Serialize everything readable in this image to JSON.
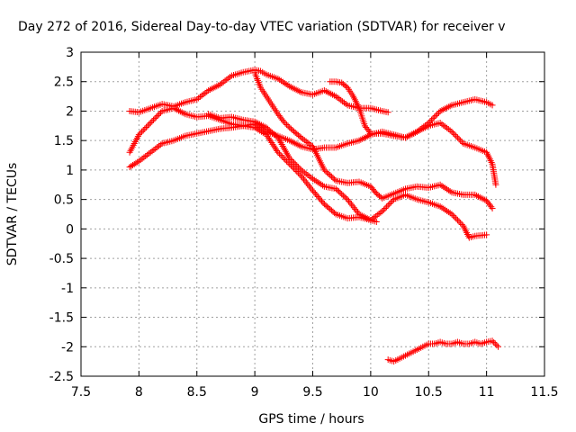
{
  "chart_data": {
    "type": "scatter",
    "title": "Day 272 of 2016, Sidereal Day-to-day VTEC variation (SDTVAR) for receiver v",
    "xlabel": "GPS time / hours",
    "ylabel": "SDTVAR / TECUs",
    "xlim": [
      7.5,
      11.5
    ],
    "ylim": [
      -2.5,
      3
    ],
    "xticks": [
      "7.5",
      "8",
      "8.5",
      "9",
      "9.5",
      "10",
      "10.5",
      "11",
      "11.5"
    ],
    "yticks": [
      "3",
      "2.5",
      "2",
      "1.5",
      "1",
      "0.5",
      "0",
      "-0.5",
      "-1",
      "-1.5",
      "-2",
      "-2.5"
    ],
    "grid": true,
    "marker": "+",
    "color": "#ff0000",
    "series": [
      {
        "x": [
          7.92,
          8.0,
          8.1,
          8.2,
          8.3,
          8.4,
          8.5,
          8.6,
          8.7,
          8.8,
          8.9,
          8.95,
          9.0,
          9.05,
          9.1,
          9.2,
          9.3,
          9.4,
          9.5,
          9.6,
          9.7,
          9.8,
          9.9,
          10.0,
          10.1,
          10.15
        ],
        "y": [
          2.0,
          1.98,
          2.05,
          2.12,
          2.08,
          2.15,
          2.2,
          2.35,
          2.45,
          2.6,
          2.66,
          2.68,
          2.7,
          2.68,
          2.62,
          2.55,
          2.42,
          2.32,
          2.28,
          2.35,
          2.25,
          2.1,
          2.05,
          2.05,
          2.0,
          1.98
        ]
      },
      {
        "x": [
          9.0,
          9.02,
          9.05,
          9.1,
          9.15,
          9.2,
          9.25,
          9.3,
          9.4,
          9.5,
          9.6,
          9.7,
          9.8,
          9.9,
          10.0,
          10.05,
          10.1,
          10.2,
          10.3,
          10.4,
          10.5,
          10.6,
          10.7,
          10.8,
          10.9,
          11.0,
          11.05
        ],
        "y": [
          2.65,
          2.55,
          2.4,
          2.25,
          2.1,
          1.95,
          1.82,
          1.72,
          1.55,
          1.4,
          1.0,
          0.82,
          0.78,
          0.8,
          0.72,
          0.6,
          0.52,
          0.6,
          0.68,
          0.72,
          0.7,
          0.75,
          0.62,
          0.58,
          0.58,
          0.48,
          0.35
        ]
      },
      {
        "x": [
          9.65,
          9.7,
          9.75,
          9.8,
          9.85,
          9.9,
          9.95,
          10.0,
          10.1,
          10.2,
          10.3,
          10.4,
          10.5,
          10.6,
          10.7,
          10.8,
          10.9,
          11.0,
          11.05,
          11.08
        ],
        "y": [
          2.5,
          2.5,
          2.48,
          2.4,
          2.25,
          2.05,
          1.75,
          1.62,
          1.62,
          1.58,
          1.55,
          1.65,
          1.75,
          1.8,
          1.65,
          1.45,
          1.38,
          1.3,
          1.1,
          0.75
        ]
      },
      {
        "x": [
          7.92,
          8.0,
          8.1,
          8.2,
          8.3,
          8.4,
          8.5,
          8.6,
          8.7,
          8.8,
          8.9,
          9.0,
          9.1,
          9.2,
          9.3,
          9.4,
          9.5,
          9.6,
          9.7,
          9.8,
          9.9,
          10.0,
          10.1,
          10.2,
          10.3,
          10.4,
          10.5,
          10.6,
          10.7,
          10.8,
          10.9,
          11.0,
          11.05
        ],
        "y": [
          1.3,
          1.6,
          1.8,
          2.0,
          2.05,
          1.95,
          1.9,
          1.92,
          1.85,
          1.78,
          1.75,
          1.78,
          1.65,
          1.58,
          1.5,
          1.4,
          1.35,
          1.38,
          1.38,
          1.45,
          1.5,
          1.6,
          1.65,
          1.6,
          1.55,
          1.65,
          1.8,
          2.0,
          2.1,
          2.15,
          2.2,
          2.15,
          2.1
        ]
      },
      {
        "x": [
          7.92,
          8.0,
          8.1,
          8.2,
          8.3,
          8.4,
          8.5,
          8.6,
          8.7,
          8.8,
          8.9,
          9.0,
          9.1,
          9.2,
          9.3,
          9.4,
          9.5,
          9.6,
          9.7,
          9.8,
          9.9,
          10.0,
          10.05
        ],
        "y": [
          1.05,
          1.15,
          1.3,
          1.45,
          1.5,
          1.58,
          1.62,
          1.66,
          1.7,
          1.72,
          1.75,
          1.72,
          1.6,
          1.3,
          1.1,
          0.9,
          0.65,
          0.42,
          0.25,
          0.18,
          0.2,
          0.15,
          0.12
        ]
      },
      {
        "x": [
          8.6,
          8.7,
          8.8,
          8.9,
          9.0,
          9.1,
          9.2,
          9.3,
          9.4,
          9.5,
          9.6,
          9.7,
          9.8,
          9.9,
          10.0,
          10.1,
          10.2,
          10.3,
          10.4,
          10.5,
          10.6,
          10.7,
          10.8,
          10.85,
          10.9,
          11.0
        ],
        "y": [
          1.95,
          1.88,
          1.9,
          1.85,
          1.82,
          1.72,
          1.55,
          1.2,
          1.0,
          0.85,
          0.72,
          0.68,
          0.5,
          0.25,
          0.15,
          0.3,
          0.5,
          0.58,
          0.5,
          0.45,
          0.38,
          0.25,
          0.05,
          -0.15,
          -0.12,
          -0.1
        ]
      },
      {
        "x": [
          10.15,
          10.2,
          10.25,
          10.3,
          10.35,
          10.4,
          10.45,
          10.5,
          10.55,
          10.6,
          10.65,
          10.7,
          10.75,
          10.8,
          10.85,
          10.9,
          10.95,
          11.0,
          11.05,
          11.1
        ],
        "y": [
          -2.22,
          -2.25,
          -2.2,
          -2.15,
          -2.1,
          -2.05,
          -2.0,
          -1.95,
          -1.95,
          -1.92,
          -1.95,
          -1.95,
          -1.92,
          -1.95,
          -1.95,
          -1.92,
          -1.95,
          -1.92,
          -1.9,
          -2.0
        ]
      }
    ]
  }
}
